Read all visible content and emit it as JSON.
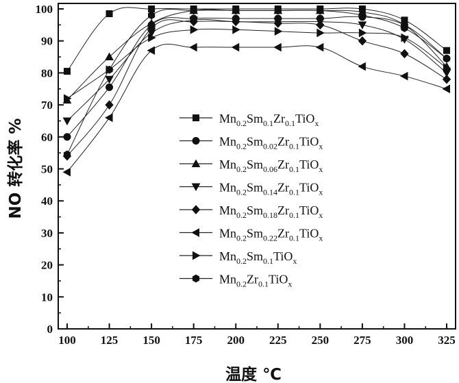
{
  "chart_data": {
    "type": "line",
    "title": "",
    "xlabel": "温度 ℃",
    "ylabel": "NO 转化率 %",
    "xlim": [
      100,
      325
    ],
    "ylim": [
      0,
      100
    ],
    "x": [
      100,
      125,
      150,
      175,
      200,
      225,
      250,
      275,
      300,
      325
    ],
    "x_ticks": [
      "100",
      "125",
      "150",
      "175",
      "200",
      "225",
      "250",
      "275",
      "300",
      "325"
    ],
    "y_ticks": [
      "0",
      "10",
      "20",
      "30",
      "40",
      "50",
      "60",
      "70",
      "80",
      "90",
      "100"
    ],
    "grid": false,
    "legend_position": "center",
    "series": [
      {
        "name": "Mn0.2Sm0.1Zr0.1TiOx",
        "label_parts": [
          "Mn",
          "0.2",
          "Sm",
          "0.1",
          "Zr",
          "0.1",
          "TiO",
          "x"
        ],
        "marker": "square",
        "values": [
          80.5,
          98.5,
          100,
          100,
          100,
          100,
          100,
          100,
          96.5,
          87
        ]
      },
      {
        "name": "Mn0.2Sm0.02Zr0.1TiOx",
        "label_parts": [
          "Mn",
          "0.2",
          "Sm",
          "0.02",
          "Zr",
          "0.1",
          "TiO",
          "x"
        ],
        "marker": "circle",
        "values": [
          60,
          75.5,
          95,
          97,
          97,
          97,
          97,
          97.5,
          95,
          84.5
        ]
      },
      {
        "name": "Mn0.2Sm0.06Zr0.1TiOx",
        "label_parts": [
          "Mn",
          "0.2",
          "Sm",
          "0.06",
          "Zr",
          "0.1",
          "TiO",
          "x"
        ],
        "marker": "triangle-up",
        "values": [
          71.5,
          85,
          95.5,
          99.5,
          99.5,
          99.5,
          99.5,
          99,
          95,
          82
        ]
      },
      {
        "name": "Mn0.2Sm0.14Zr0.1TiOx",
        "label_parts": [
          "Mn",
          "0.2",
          "Sm",
          "0.14",
          "Zr",
          "0.1",
          "TiO",
          "x"
        ],
        "marker": "triangle-down",
        "values": [
          65,
          78,
          92.5,
          96.5,
          96,
          96,
          96,
          95,
          90.5,
          80
        ]
      },
      {
        "name": "Mn0.2Sm0.18Zr0.1TiOx",
        "label_parts": [
          "Mn",
          "0.2",
          "Sm",
          "0.18",
          "Zr",
          "0.1",
          "TiO",
          "x"
        ],
        "marker": "diamond",
        "values": [
          54,
          70,
          94,
          96,
          96,
          95.5,
          95,
          90,
          86,
          78
        ]
      },
      {
        "name": "Mn0.2Sm0.22Zr0.1TiOx",
        "label_parts": [
          "Mn",
          "0.2",
          "Sm",
          "0.22",
          "Zr",
          "0.1",
          "TiO",
          "x"
        ],
        "marker": "triangle-left",
        "values": [
          49,
          66,
          87,
          88,
          88,
          88,
          88,
          82,
          79,
          75
        ]
      },
      {
        "name": "Mn0.2Sm0.1TiOx",
        "label_parts": [
          "Mn",
          "0.2",
          "Sm",
          "0.1",
          "TiO",
          "x"
        ],
        "marker": "triangle-right",
        "values": [
          72,
          81,
          91,
          93.5,
          93.5,
          93,
          92.5,
          92.5,
          91,
          81.5
        ]
      },
      {
        "name": "Mn0.2Zr0.1TiOx",
        "label_parts": [
          "Mn",
          "0.2",
          "Zr",
          "0.1",
          "TiO",
          "x"
        ],
        "marker": "hexagon",
        "values": [
          54.5,
          81,
          98,
          99.5,
          99.5,
          99.5,
          99.5,
          98,
          94,
          84.5
        ]
      }
    ]
  }
}
